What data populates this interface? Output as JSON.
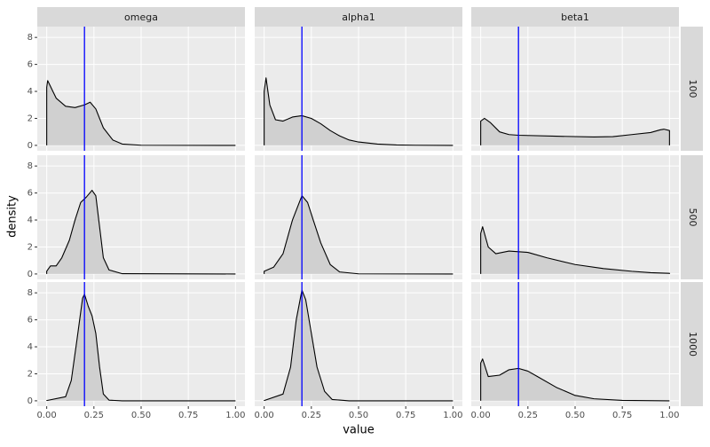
{
  "chart_data": {
    "type": "density-facet",
    "xlabel": "value",
    "ylabel": "density",
    "columns": [
      "omega",
      "alpha1",
      "beta1"
    ],
    "rows": [
      "100",
      "500",
      "1000"
    ],
    "xlim": [
      -0.05,
      1.05
    ],
    "ylim": [
      -0.4,
      8.8
    ],
    "xticks": [
      {
        "value": 0,
        "label": "0.00"
      },
      {
        "value": 0.25,
        "label": "0.25"
      },
      {
        "value": 0.5,
        "label": "0.50"
      },
      {
        "value": 0.75,
        "label": "0.75"
      },
      {
        "value": 1,
        "label": "1.00"
      }
    ],
    "yticks": [
      0,
      2,
      4,
      6,
      8
    ],
    "grid": true,
    "fill": "#d0d0d0",
    "line_color": "#000000",
    "reference_line": 0.2,
    "reference_color": "#0000ff",
    "panels": [
      [
        {
          "x": [
            0,
            0.005,
            0.05,
            0.1,
            0.15,
            0.2,
            0.23,
            0.26,
            0.3,
            0.35,
            0.4,
            0.5,
            1.0
          ],
          "values": [
            4.3,
            4.8,
            3.5,
            2.9,
            2.8,
            3.0,
            3.2,
            2.7,
            1.3,
            0.4,
            0.1,
            0.01,
            0
          ]
        },
        {
          "x": [
            0,
            0.01,
            0.03,
            0.06,
            0.1,
            0.15,
            0.2,
            0.25,
            0.3,
            0.35,
            0.4,
            0.45,
            0.5,
            0.6,
            0.7,
            0.8,
            1.0
          ],
          "values": [
            4.0,
            5.0,
            3.0,
            1.9,
            1.8,
            2.1,
            2.2,
            2.0,
            1.6,
            1.1,
            0.7,
            0.4,
            0.25,
            0.1,
            0.03,
            0.01,
            0
          ]
        },
        {
          "x": [
            0,
            0.02,
            0.05,
            0.1,
            0.15,
            0.2,
            0.4,
            0.6,
            0.7,
            0.8,
            0.9,
            0.95,
            0.97,
            1.0
          ],
          "values": [
            1.8,
            2.0,
            1.7,
            1.0,
            0.8,
            0.75,
            0.68,
            0.62,
            0.65,
            0.8,
            0.95,
            1.15,
            1.2,
            1.1
          ]
        }
      ],
      [
        {
          "x": [
            0,
            0.02,
            0.05,
            0.08,
            0.12,
            0.15,
            0.18,
            0.21,
            0.24,
            0.26,
            0.28,
            0.3,
            0.33,
            0.4,
            1.0
          ],
          "values": [
            0.2,
            0.6,
            0.6,
            1.2,
            2.5,
            4.0,
            5.3,
            5.7,
            6.2,
            5.8,
            3.5,
            1.2,
            0.3,
            0.02,
            0
          ]
        },
        {
          "x": [
            0,
            0.05,
            0.1,
            0.15,
            0.2,
            0.23,
            0.26,
            0.3,
            0.35,
            0.4,
            0.5,
            1.0
          ],
          "values": [
            0.2,
            0.5,
            1.5,
            4.0,
            5.8,
            5.3,
            4.0,
            2.3,
            0.7,
            0.15,
            0.01,
            0
          ]
        },
        {
          "x": [
            0,
            0.01,
            0.04,
            0.08,
            0.15,
            0.25,
            0.35,
            0.5,
            0.65,
            0.8,
            0.9,
            1.0
          ],
          "values": [
            3.0,
            3.5,
            2.0,
            1.5,
            1.7,
            1.6,
            1.2,
            0.7,
            0.4,
            0.2,
            0.1,
            0.05
          ]
        }
      ],
      [
        {
          "x": [
            0,
            0.1,
            0.13,
            0.16,
            0.19,
            0.2,
            0.22,
            0.24,
            0.26,
            0.28,
            0.3,
            0.33,
            0.4,
            1.0
          ],
          "values": [
            0.02,
            0.3,
            1.5,
            4.5,
            7.6,
            7.9,
            7.0,
            6.3,
            5.0,
            2.5,
            0.5,
            0.05,
            0,
            0
          ]
        },
        {
          "x": [
            0,
            0.1,
            0.14,
            0.17,
            0.2,
            0.22,
            0.25,
            0.28,
            0.32,
            0.36,
            0.45,
            1.0
          ],
          "values": [
            0.02,
            0.5,
            2.5,
            6.0,
            8.2,
            7.5,
            5.0,
            2.5,
            0.7,
            0.1,
            0,
            0
          ]
        },
        {
          "x": [
            0,
            0.01,
            0.04,
            0.1,
            0.15,
            0.2,
            0.25,
            0.3,
            0.4,
            0.5,
            0.6,
            0.75,
            1.0
          ],
          "values": [
            2.8,
            3.1,
            1.8,
            1.9,
            2.3,
            2.4,
            2.2,
            1.8,
            1.0,
            0.4,
            0.15,
            0.03,
            0
          ]
        }
      ]
    ]
  }
}
